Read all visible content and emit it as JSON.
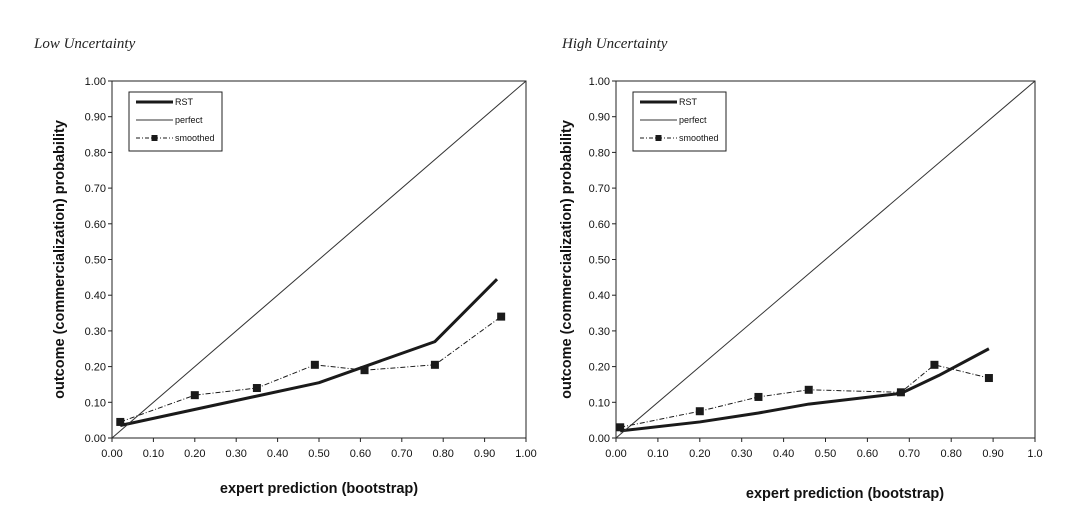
{
  "chart_data": [
    {
      "type": "line",
      "title": "Low Uncertainty",
      "xlabel": "expert prediction (bootstrap)",
      "ylabel": "outcome (commercialization) probability",
      "xlim": [
        0,
        1
      ],
      "ylim": [
        0,
        1
      ],
      "x_tick_labels": [
        "0.00",
        "0.10",
        "0.20",
        "0.30",
        "0.40",
        "0.50",
        "0.60",
        "0.70",
        "0.80",
        "0.90",
        "1.00"
      ],
      "y_tick_labels": [
        "0.00",
        "0.10",
        "0.20",
        "0.30",
        "0.40",
        "0.50",
        "0.60",
        "0.70",
        "0.80",
        "0.90",
        "1.00"
      ],
      "grid": false,
      "legend_position": "top-left",
      "series": [
        {
          "name": "RST",
          "style": "thick-solid",
          "color": "#1a1a1a",
          "x": [
            0.02,
            0.5,
            0.78,
            0.93
          ],
          "y": [
            0.035,
            0.155,
            0.27,
            0.445
          ]
        },
        {
          "name": "perfect",
          "style": "thin-solid",
          "color": "#333333",
          "x": [
            0,
            1
          ],
          "y": [
            0,
            1
          ]
        },
        {
          "name": "smoothed",
          "style": "dash-dot-square",
          "color": "#1a1a1a",
          "x": [
            0.02,
            0.2,
            0.35,
            0.49,
            0.61,
            0.78,
            0.94
          ],
          "y": [
            0.045,
            0.12,
            0.14,
            0.205,
            0.19,
            0.205,
            0.34
          ]
        }
      ]
    },
    {
      "type": "line",
      "title": "High Uncertainty",
      "xlabel": "expert prediction (bootstrap)",
      "ylabel": "outcome (commercialization) probability",
      "xlim": [
        0,
        1
      ],
      "ylim": [
        0,
        1
      ],
      "x_tick_labels": [
        "0.00",
        "0.10",
        "0.20",
        "0.30",
        "0.40",
        "0.50",
        "0.60",
        "0.70",
        "0.80",
        "0.90",
        "1.0"
      ],
      "y_tick_labels": [
        "0.00",
        "0.10",
        "0.20",
        "0.30",
        "0.40",
        "0.50",
        "0.60",
        "0.70",
        "0.80",
        "0.90",
        "1.00"
      ],
      "grid": false,
      "legend_position": "top-left",
      "series": [
        {
          "name": "RST",
          "style": "thick-solid",
          "color": "#1a1a1a",
          "x": [
            0.01,
            0.2,
            0.34,
            0.46,
            0.68,
            0.77,
            0.89
          ],
          "y": [
            0.02,
            0.045,
            0.07,
            0.095,
            0.125,
            0.175,
            0.25
          ]
        },
        {
          "name": "perfect",
          "style": "thin-solid",
          "color": "#333333",
          "x": [
            0,
            1
          ],
          "y": [
            0,
            1
          ]
        },
        {
          "name": "smoothed",
          "style": "dash-dot-square",
          "color": "#1a1a1a",
          "x": [
            0.01,
            0.2,
            0.34,
            0.46,
            0.68,
            0.76,
            0.89
          ],
          "y": [
            0.03,
            0.075,
            0.115,
            0.135,
            0.128,
            0.205,
            0.168
          ]
        }
      ]
    }
  ]
}
